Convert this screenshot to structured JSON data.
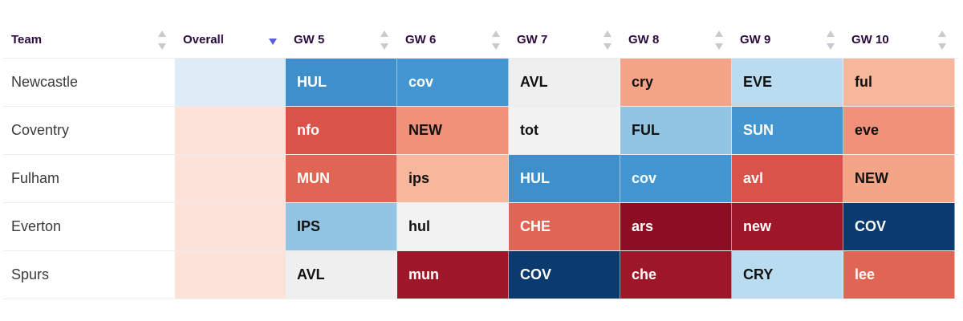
{
  "header": {
    "team": "Team",
    "overall": "Overall",
    "gws": [
      "GW 5",
      "GW 6",
      "GW 7",
      "GW 8",
      "GW 9",
      "GW 10"
    ]
  },
  "colors": {
    "overall_sort_arrow": "#5a5de0",
    "sort_arrows": "#c9c9cf"
  },
  "rows": [
    {
      "team": "Newcastle",
      "overall_color": "#dcebf5",
      "fixtures": [
        {
          "label": "HUL",
          "bg": "#3f8fcb",
          "fg": "#ffffff"
        },
        {
          "label": "cov",
          "bg": "#4396cf",
          "fg": "#ffffff"
        },
        {
          "label": "AVL",
          "bg": "#efefef",
          "fg": "#111111"
        },
        {
          "label": "cry",
          "bg": "#f4a487",
          "fg": "#111111"
        },
        {
          "label": "EVE",
          "bg": "#b9dcf0",
          "fg": "#111111"
        },
        {
          "label": "ful",
          "bg": "#f7b79c",
          "fg": "#111111"
        }
      ]
    },
    {
      "team": "Coventry",
      "overall_color": "#fbe3d9",
      "fixtures": [
        {
          "label": "nfo",
          "bg": "#d9534a",
          "fg": "#ffffff"
        },
        {
          "label": "NEW",
          "bg": "#ef9279",
          "fg": "#111111"
        },
        {
          "label": "tot",
          "bg": "#f2f2f2",
          "fg": "#111111"
        },
        {
          "label": "FUL",
          "bg": "#91c5e3",
          "fg": "#111111"
        },
        {
          "label": "SUN",
          "bg": "#4396cf",
          "fg": "#ffffff"
        },
        {
          "label": "eve",
          "bg": "#ef9279",
          "fg": "#111111"
        }
      ]
    },
    {
      "team": "Fulham",
      "overall_color": "#fbe3d9",
      "fixtures": [
        {
          "label": "MUN",
          "bg": "#e16555",
          "fg": "#ffffff"
        },
        {
          "label": "ips",
          "bg": "#f7b79c",
          "fg": "#111111"
        },
        {
          "label": "HUL",
          "bg": "#3f8fcb",
          "fg": "#ffffff"
        },
        {
          "label": "cov",
          "bg": "#4396cf",
          "fg": "#ffffff"
        },
        {
          "label": "avl",
          "bg": "#d9534a",
          "fg": "#ffffff"
        },
        {
          "label": "NEW",
          "bg": "#f4a487",
          "fg": "#111111"
        }
      ]
    },
    {
      "team": "Everton",
      "overall_color": "#fbe3d9",
      "fixtures": [
        {
          "label": "IPS",
          "bg": "#91c5e3",
          "fg": "#111111"
        },
        {
          "label": "hul",
          "bg": "#f2f2f2",
          "fg": "#111111"
        },
        {
          "label": "CHE",
          "bg": "#e16555",
          "fg": "#ffffff"
        },
        {
          "label": "ars",
          "bg": "#8c0e23",
          "fg": "#ffffff"
        },
        {
          "label": "new",
          "bg": "#9e1729",
          "fg": "#ffffff"
        },
        {
          "label": "COV",
          "bg": "#0b3a6e",
          "fg": "#ffffff"
        }
      ]
    },
    {
      "team": "Spurs",
      "overall_color": "#fbe3d9",
      "fixtures": [
        {
          "label": "AVL",
          "bg": "#efefef",
          "fg": "#111111"
        },
        {
          "label": "mun",
          "bg": "#9e1729",
          "fg": "#ffffff"
        },
        {
          "label": "COV",
          "bg": "#0b3a6e",
          "fg": "#ffffff"
        },
        {
          "label": "che",
          "bg": "#9e1729",
          "fg": "#ffffff"
        },
        {
          "label": "CRY",
          "bg": "#b9dcf0",
          "fg": "#111111"
        },
        {
          "label": "lee",
          "bg": "#e16555",
          "fg": "#ffffff"
        }
      ]
    }
  ]
}
